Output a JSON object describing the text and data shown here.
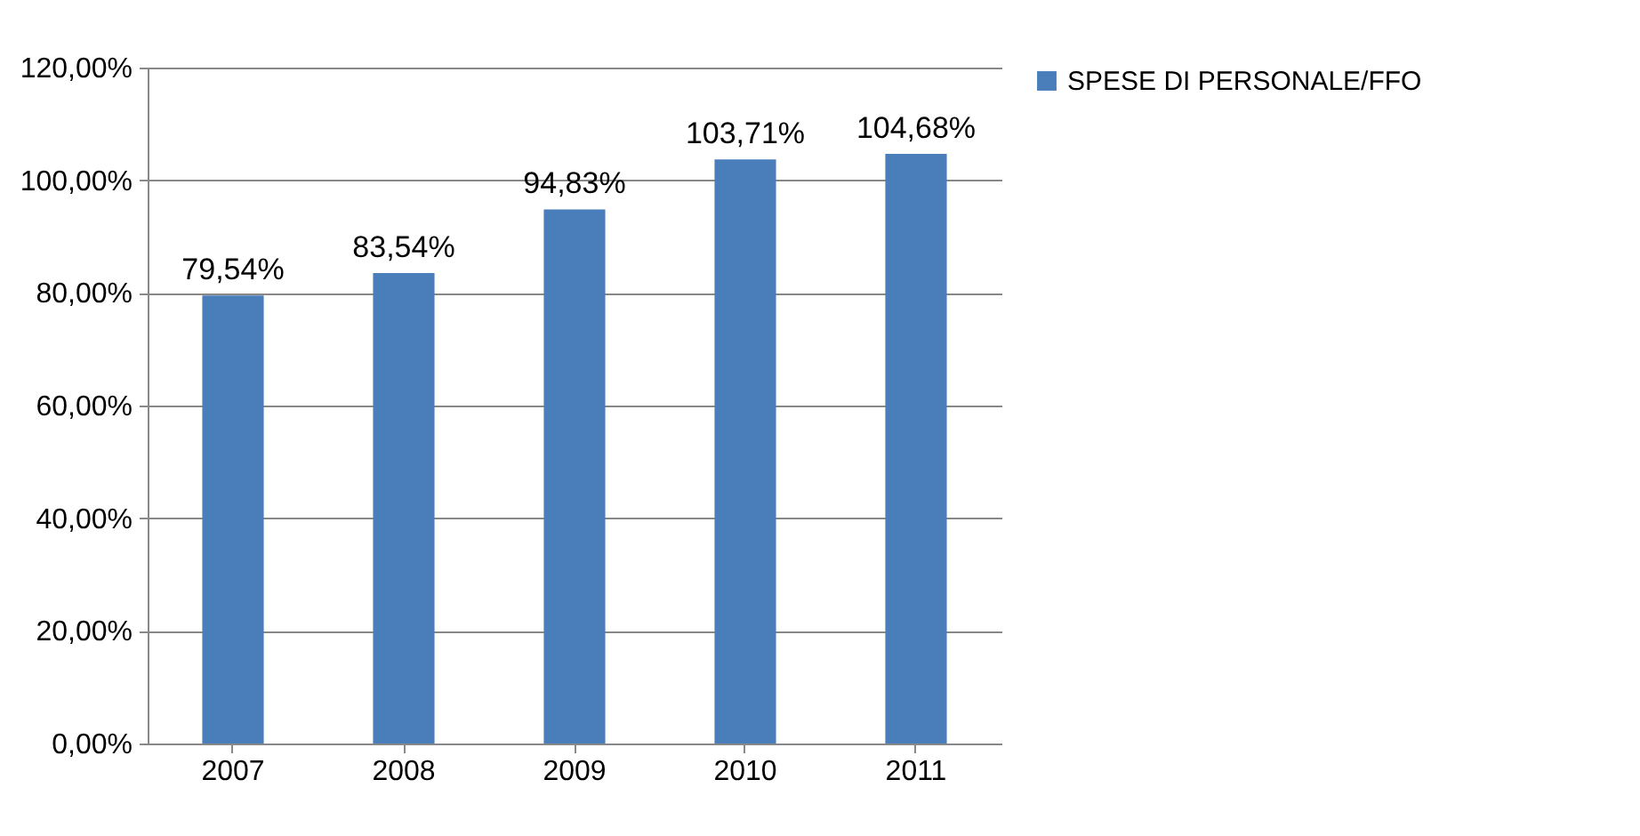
{
  "chart_data": {
    "type": "bar",
    "categories": [
      "2007",
      "2008",
      "2009",
      "2010",
      "2011"
    ],
    "series": [
      {
        "name": "SPESE DI PERSONALE/FFO",
        "color": "#4a7ebb",
        "values": [
          79.54,
          83.54,
          94.83,
          103.71,
          104.68
        ],
        "value_labels": [
          "79,54%",
          "83,54%",
          "94,83%",
          "103,71%",
          "104,68%"
        ]
      }
    ],
    "ylim": [
      0,
      120
    ],
    "yticks": [
      {
        "value": 0,
        "label": "0,00%"
      },
      {
        "value": 20,
        "label": "20,00%"
      },
      {
        "value": 40,
        "label": "40,00%"
      },
      {
        "value": 60,
        "label": "60,00%"
      },
      {
        "value": 80,
        "label": "80,00%"
      },
      {
        "value": 100,
        "label": "100,00%"
      },
      {
        "value": 120,
        "label": "120,00%"
      }
    ],
    "grid": "y",
    "legend": "right"
  }
}
